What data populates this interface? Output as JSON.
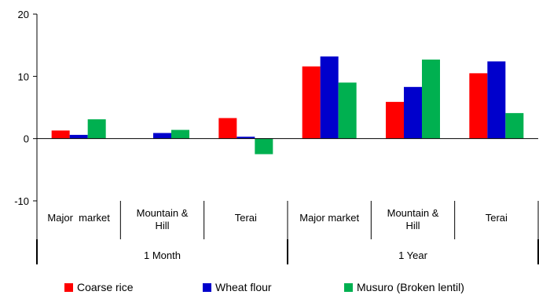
{
  "chart_data": {
    "type": "bar",
    "yticks": [
      "20",
      "10",
      "0",
      "-10"
    ],
    "ylim": [
      -10,
      20
    ],
    "categories": [
      [
        "Major  market"
      ],
      [
        "Mountain &",
        "Hill"
      ],
      [
        "Terai"
      ],
      [
        "Major market"
      ],
      [
        "Mountain &",
        "Hill"
      ],
      [
        "Terai"
      ]
    ],
    "groups": [
      {
        "label": "1 Month",
        "span": [
          0,
          2
        ]
      },
      {
        "label": "1 Year",
        "span": [
          3,
          5
        ]
      }
    ],
    "series": [
      {
        "name": "Coarse rice",
        "color": "#ff0000",
        "values": [
          1.3,
          0.0,
          3.3,
          11.6,
          5.9,
          10.5
        ]
      },
      {
        "name": "Wheat flour",
        "color": "#0000cc",
        "values": [
          0.6,
          0.9,
          0.3,
          13.2,
          8.3,
          12.4
        ]
      },
      {
        "name": "Musuro (Broken lentil)",
        "color": "#00b050",
        "values": [
          3.1,
          1.4,
          -2.5,
          9.0,
          12.7,
          4.1
        ]
      }
    ],
    "grid": false,
    "legend_position": "bottom"
  }
}
